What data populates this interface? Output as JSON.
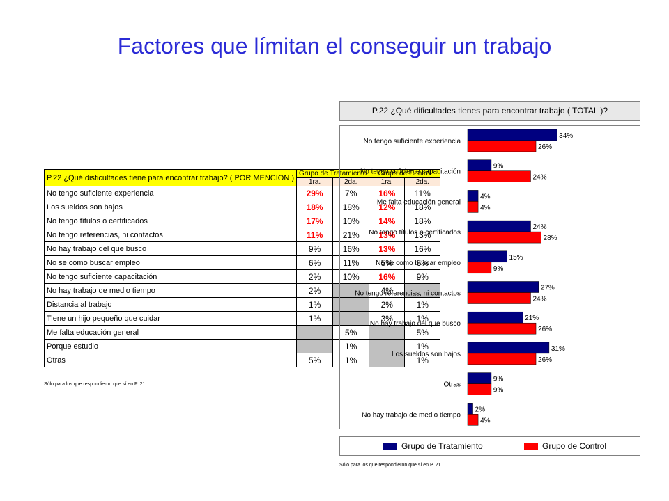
{
  "title": "Factores que límitan el conseguir un trabajo",
  "table": {
    "question": "P.22 ¿Qué disficultades tiene para encontrar trabajo? ( POR MENCION )",
    "group_headers": [
      "Grupo de Tratamiento",
      "Grupo de Control"
    ],
    "sub_headers": [
      "1ra.",
      "2da.",
      "1ra.",
      "2da."
    ],
    "rows": [
      {
        "label": "No tengo suficiente experiencia",
        "vals": [
          "29%",
          "7%",
          "16%",
          "11%"
        ],
        "red": [
          true,
          false,
          true,
          false
        ]
      },
      {
        "label": "Los sueldos son bajos",
        "vals": [
          "18%",
          "18%",
          "12%",
          "18%"
        ],
        "red": [
          true,
          false,
          true,
          false
        ]
      },
      {
        "label": "No tengo títulos o certificados",
        "vals": [
          "17%",
          "10%",
          "14%",
          "18%"
        ],
        "red": [
          true,
          false,
          true,
          false
        ]
      },
      {
        "label": "No tengo referencias, ni contactos",
        "vals": [
          "11%",
          "21%",
          "13%",
          "13%"
        ],
        "red": [
          true,
          false,
          true,
          false
        ]
      },
      {
        "label": "No hay trabajo del que busco",
        "vals": [
          "9%",
          "16%",
          "13%",
          "16%"
        ],
        "red": [
          false,
          false,
          true,
          false
        ]
      },
      {
        "label": "No se como buscar empleo",
        "vals": [
          "6%",
          "11%",
          "5%",
          "6%"
        ],
        "red": [
          false,
          false,
          false,
          false
        ]
      },
      {
        "label": "No tengo suficiente capacitación",
        "vals": [
          "2%",
          "10%",
          "16%",
          "9%"
        ],
        "red": [
          false,
          false,
          true,
          false
        ]
      },
      {
        "label": "No hay trabajo de medio tiempo",
        "vals": [
          "2%",
          "",
          "4%",
          ""
        ],
        "red": [
          false,
          false,
          false,
          false
        ]
      },
      {
        "label": "Distancia al trabajo",
        "vals": [
          "1%",
          "",
          "2%",
          "1%"
        ],
        "red": [
          false,
          false,
          false,
          false
        ]
      },
      {
        "label": "Tiene un hijo pequeño que cuidar",
        "vals": [
          "1%",
          "",
          "3%",
          "1%"
        ],
        "red": [
          false,
          false,
          false,
          false
        ]
      },
      {
        "label": "Me falta educación general",
        "vals": [
          "",
          "5%",
          "",
          "5%"
        ],
        "red": [
          false,
          false,
          false,
          false
        ]
      },
      {
        "label": "Porque estudio",
        "vals": [
          "",
          "1%",
          "",
          "1%"
        ],
        "red": [
          false,
          false,
          false,
          false
        ]
      },
      {
        "label": "Otras",
        "vals": [
          "5%",
          "1%",
          "",
          "1%"
        ],
        "red": [
          false,
          false,
          false,
          false
        ]
      }
    ],
    "note": "Sólo para los que respondieron que sí en P. 21"
  },
  "chart_note": "Sólo para los que respondieron que sí en P. 21",
  "chart_data": {
    "type": "bar",
    "orientation": "horizontal",
    "title": "P.22 ¿Qué dificultades tienes para encontrar trabajo ( TOTAL )?",
    "categories": [
      "No tengo suficiente experiencia",
      "No tengo suficiente capacitación",
      "Me falta educación general",
      "No tengo títulos o certificados",
      "No se como buscar empleo",
      "No tengo referencias, ni contactos",
      "No hay trabajo del que busco",
      "Los sueldos son bajos",
      "Otras",
      "No hay trabajo de medio tiempo"
    ],
    "series": [
      {
        "name": "Grupo de Tratamiento",
        "color": "#000080",
        "values": [
          34,
          9,
          4,
          24,
          15,
          27,
          21,
          31,
          9,
          2
        ]
      },
      {
        "name": "Grupo de Control",
        "color": "#ff0000",
        "values": [
          26,
          24,
          4,
          28,
          9,
          24,
          26,
          26,
          9,
          4
        ]
      }
    ],
    "value_suffix": "%",
    "xlim": [
      0,
      40
    ],
    "grid": false,
    "legend_position": "bottom"
  }
}
